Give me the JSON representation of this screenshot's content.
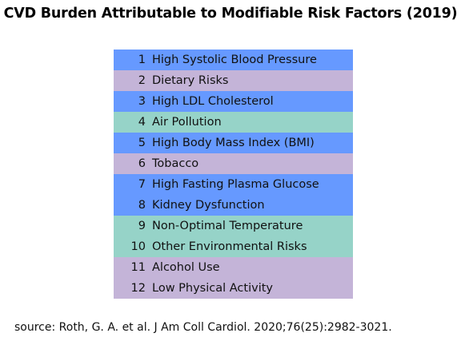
{
  "title": "CVD Burden Attributable to Modifiable Risk Factors (2019)",
  "source": "source: Roth, G. A. et al. J Am Coll Cardiol. 2020;76(25):2982-3021.",
  "colors": {
    "blue": "#6699ff",
    "purple": "#c4b4d8",
    "teal": "#96d3c8"
  },
  "chart_data": {
    "type": "table",
    "title": "CVD Burden Attributable to Modifiable Risk Factors (2019)",
    "columns": [
      "rank",
      "risk_factor"
    ],
    "rows": [
      {
        "rank": "1",
        "label": "High Systolic Blood Pressure",
        "color": "#6699ff"
      },
      {
        "rank": "2",
        "label": "Dietary Risks",
        "color": "#c4b4d8"
      },
      {
        "rank": "3",
        "label": "High LDL Cholesterol",
        "color": "#6699ff"
      },
      {
        "rank": "4",
        "label": "Air Pollution",
        "color": "#96d3c8"
      },
      {
        "rank": "5",
        "label": "High Body Mass Index (BMI)",
        "color": "#6699ff"
      },
      {
        "rank": "6",
        "label": "Tobacco",
        "color": "#c4b4d8"
      },
      {
        "rank": "7",
        "label": "High Fasting Plasma Glucose",
        "color": "#6699ff"
      },
      {
        "rank": "8",
        "label": "Kidney Dysfunction",
        "color": "#6699ff"
      },
      {
        "rank": "9",
        "label": "Non-Optimal Temperature",
        "color": "#96d3c8"
      },
      {
        "rank": "10",
        "label": "Other Environmental Risks",
        "color": "#96d3c8"
      },
      {
        "rank": "11",
        "label": "Alcohol Use",
        "color": "#c4b4d8"
      },
      {
        "rank": "12",
        "label": "Low Physical Activity",
        "color": "#c4b4d8"
      }
    ]
  }
}
